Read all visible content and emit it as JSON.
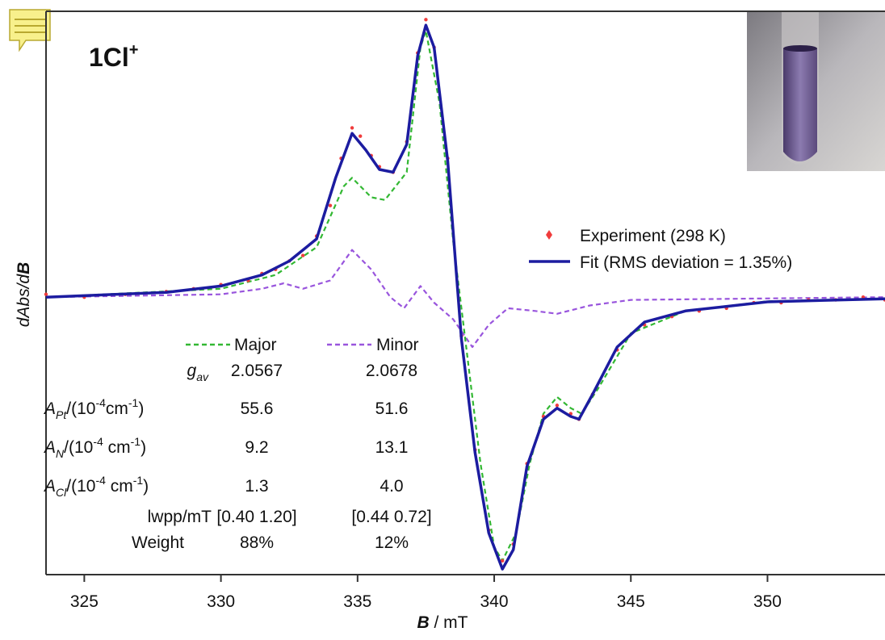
{
  "chart_data": {
    "type": "line",
    "title": "1Cl",
    "title_superscript": "+",
    "xlabel": [
      "B",
      " / mT"
    ],
    "ylabel": [
      "dAbs/d",
      "B"
    ],
    "xlim": [
      323.6,
      354.3
    ],
    "xticks": [
      325,
      330,
      335,
      340,
      345,
      350
    ],
    "ylim": [
      -1,
      1.03
    ],
    "legend": "upper right",
    "series": [
      {
        "name": "Experiment (298 K)",
        "color": "#f03c3c",
        "mode": "markers",
        "x": [
          323.6,
          325,
          326.5,
          328,
          329,
          330,
          331,
          331.5,
          332,
          332.5,
          333,
          333.5,
          334,
          334.4,
          334.8,
          335.1,
          335.5,
          335.8,
          336.3,
          336.8,
          337.2,
          337.5,
          337.8,
          338.3,
          338.8,
          339.3,
          339.8,
          340.3,
          340.7,
          341.2,
          341.8,
          342.3,
          342.8,
          343.1,
          343.6,
          344.5,
          345.5,
          346.5,
          347.5,
          348.5,
          349.5,
          350.5,
          351.5,
          352.5,
          353.5,
          354.3
        ],
        "values": [
          0.01,
          0.0,
          0.01,
          0.02,
          0.03,
          0.045,
          0.06,
          0.085,
          0.1,
          0.13,
          0.15,
          0.22,
          0.33,
          0.5,
          0.61,
          0.58,
          0.51,
          0.47,
          0.45,
          0.56,
          0.88,
          1.0,
          0.9,
          0.5,
          -0.14,
          -0.55,
          -0.84,
          -0.95,
          -0.89,
          -0.6,
          -0.43,
          -0.39,
          -0.42,
          -0.44,
          -0.35,
          -0.19,
          -0.1,
          -0.07,
          -0.05,
          -0.04,
          -0.02,
          -0.02,
          -0.01,
          -0.01,
          -0.0,
          -0.01
        ]
      },
      {
        "name": "Fit (RMS deviation = 1.35%)",
        "color": "#1c1ca0",
        "x": [
          323.6,
          328,
          330,
          331.5,
          332.5,
          333.5,
          334.2,
          334.8,
          335.3,
          335.8,
          336.3,
          336.8,
          337.2,
          337.5,
          337.8,
          338.3,
          338.8,
          339.3,
          339.8,
          340.3,
          340.7,
          341.2,
          341.8,
          342.3,
          342.8,
          343.1,
          343.6,
          344.5,
          345.5,
          347,
          350,
          354.3
        ],
        "values": [
          0,
          0.017,
          0.04,
          0.08,
          0.13,
          0.21,
          0.43,
          0.59,
          0.53,
          0.46,
          0.45,
          0.55,
          0.87,
          0.98,
          0.9,
          0.49,
          -0.15,
          -0.56,
          -0.85,
          -0.98,
          -0.91,
          -0.61,
          -0.44,
          -0.4,
          -0.43,
          -0.44,
          -0.35,
          -0.18,
          -0.09,
          -0.05,
          -0.017,
          -0.006
        ]
      },
      {
        "name": "Major",
        "color": "#33b833",
        "line_style": "dashed",
        "x": [
          323.6,
          330,
          332,
          333.5,
          334.5,
          334.8,
          335.5,
          336,
          336.8,
          337.3,
          337.5,
          338,
          338.5,
          339,
          339.5,
          340,
          340.3,
          340.8,
          341.3,
          341.8,
          342.3,
          342.8,
          343.2,
          343.8,
          345,
          347,
          350,
          354.3
        ],
        "values": [
          0,
          0.03,
          0.08,
          0.18,
          0.4,
          0.43,
          0.36,
          0.35,
          0.45,
          0.9,
          0.96,
          0.7,
          0.2,
          -0.2,
          -0.6,
          -0.9,
          -0.95,
          -0.85,
          -0.6,
          -0.42,
          -0.36,
          -0.4,
          -0.42,
          -0.33,
          -0.13,
          -0.05,
          -0.015,
          -0.005
        ]
      },
      {
        "name": "Minor",
        "color": "#9955dd",
        "line_style": "dashed",
        "x": [
          323.6,
          330,
          331.5,
          332.3,
          333,
          334,
          334.8,
          335.5,
          336.2,
          336.7,
          337.3,
          337.8,
          338.5,
          339.2,
          339.8,
          340.5,
          341.5,
          342.3,
          343.5,
          345,
          354.3
        ],
        "values": [
          0,
          0.01,
          0.03,
          0.05,
          0.03,
          0.06,
          0.17,
          0.1,
          0.0,
          -0.04,
          0.04,
          -0.02,
          -0.08,
          -0.18,
          -0.1,
          -0.04,
          -0.05,
          -0.06,
          -0.03,
          -0.01,
          0
        ]
      }
    ],
    "parameter_table": {
      "rows": [
        {
          "label": [
            "g",
            "av"
          ],
          "values": [
            "2.0567",
            "2.0678"
          ]
        },
        {
          "label": [
            "A",
            "Pt",
            "/(10",
            "-4",
            "cm",
            "-1",
            ")"
          ],
          "values": [
            "55.6",
            "51.6"
          ]
        },
        {
          "label": [
            "A",
            "N",
            "/(10",
            "-4",
            " cm",
            "-1",
            ")"
          ],
          "values": [
            "9.2",
            "13.1"
          ]
        },
        {
          "label": [
            "A",
            "Cl",
            "/(10",
            "-4",
            " cm",
            "-1",
            ")"
          ],
          "values": [
            "1.3",
            "4.0"
          ]
        },
        {
          "label": [
            "lwpp/mT"
          ],
          "values": [
            "[0.40 1.20]",
            "[0.44 0.72]"
          ]
        },
        {
          "label": [
            "Weight"
          ],
          "values": [
            "88%",
            "12%"
          ]
        }
      ]
    }
  }
}
